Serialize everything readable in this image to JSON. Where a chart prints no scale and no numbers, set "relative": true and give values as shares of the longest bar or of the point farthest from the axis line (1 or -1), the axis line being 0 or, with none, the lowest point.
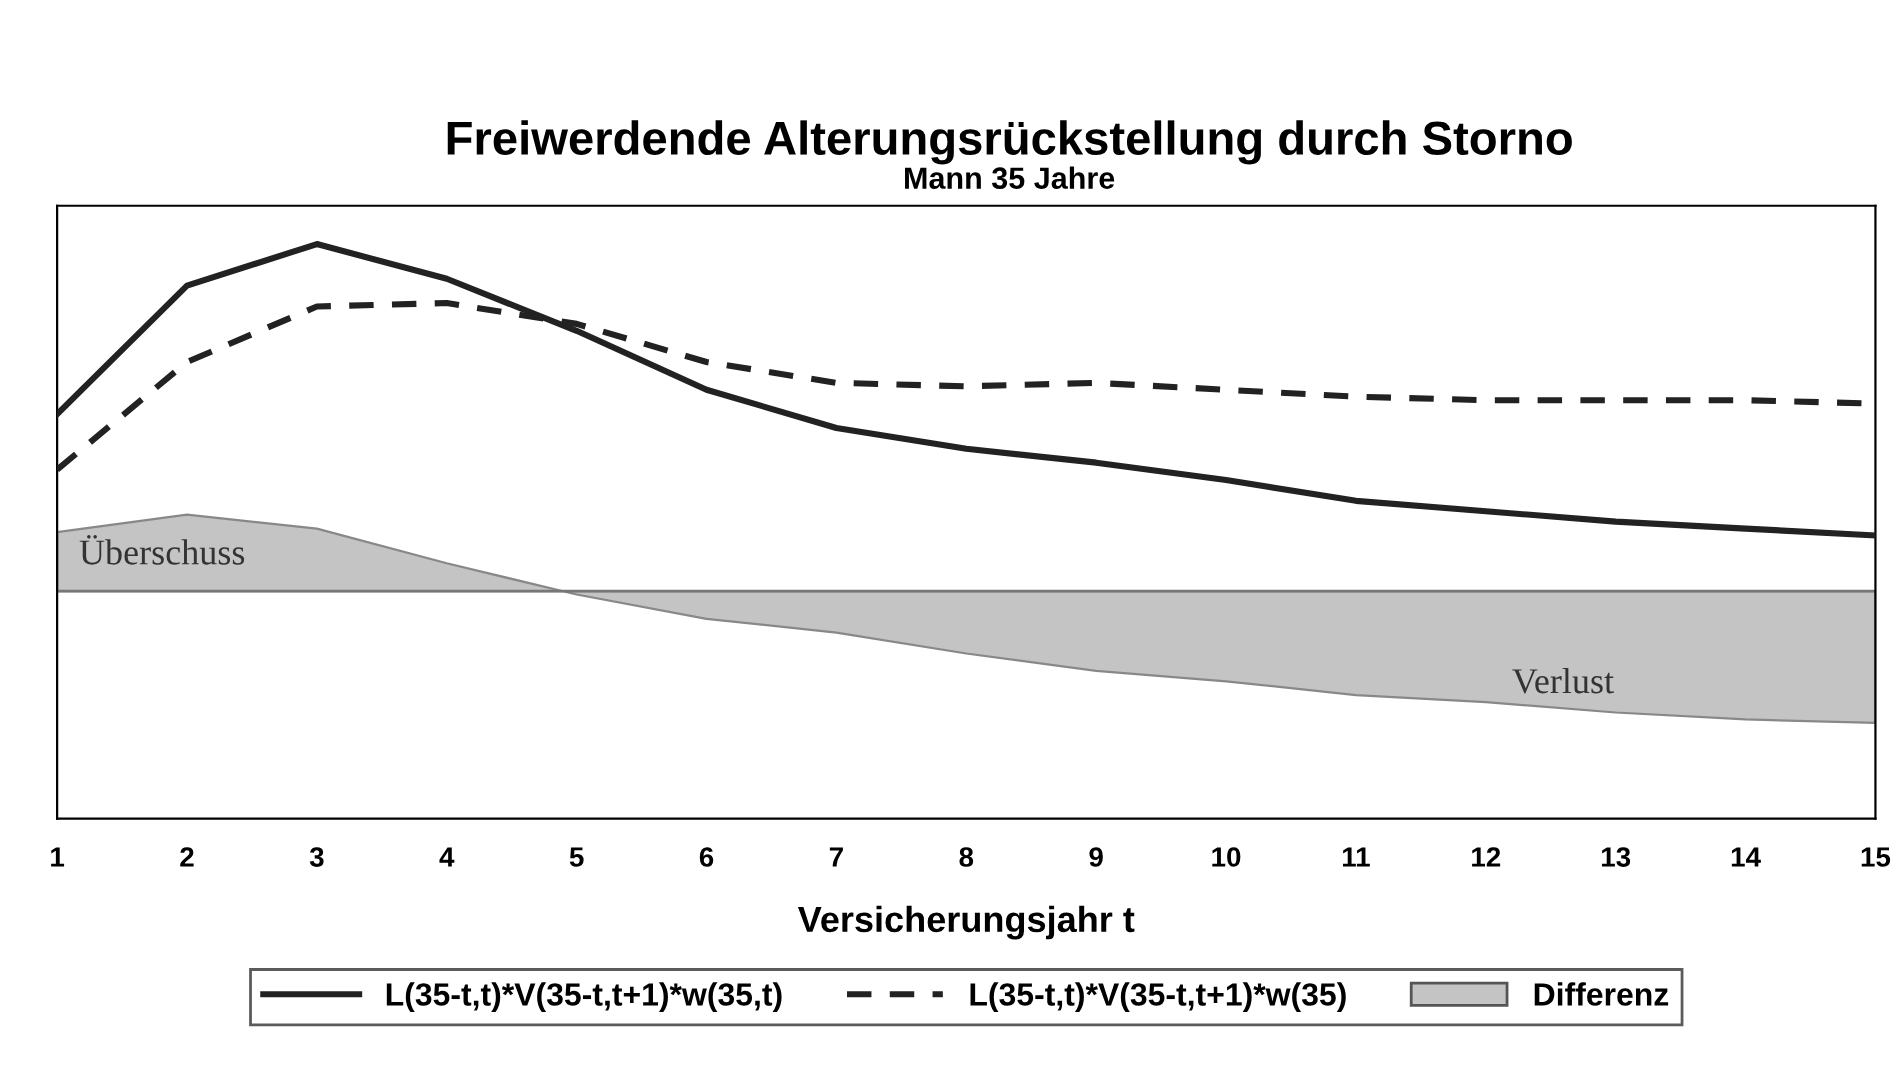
{
  "chart_data": {
    "type": "line",
    "title": "Freiwerdende Alterungsrückstellung durch Storno",
    "subtitle": "Mann 35 Jahre",
    "xlabel": "Versicherungsjahr t",
    "relative": true,
    "x": [
      1,
      2,
      3,
      4,
      5,
      6,
      7,
      8,
      9,
      10,
      11,
      12,
      13,
      14,
      15
    ],
    "xlim": [
      1,
      15
    ],
    "xticks": [
      1,
      2,
      3,
      4,
      5,
      6,
      7,
      8,
      9,
      10,
      11,
      12,
      13,
      14,
      15
    ],
    "series": [
      {
        "name": "L(35-t,t)*V(35-t,t+1)*w(35,t)",
        "color": "#222222",
        "line_style": "solid",
        "values": [
          0.51,
          0.88,
          1.0,
          0.9,
          0.75,
          0.58,
          0.47,
          0.41,
          0.37,
          0.32,
          0.26,
          0.23,
          0.2,
          0.18,
          0.16
        ]
      },
      {
        "name": "L(35-t,t)*V(35-t,t+1)*w(35)",
        "color": "#222222",
        "line_style": "dashed",
        "values": [
          0.35,
          0.66,
          0.82,
          0.83,
          0.77,
          0.66,
          0.6,
          0.59,
          0.6,
          0.58,
          0.56,
          0.55,
          0.55,
          0.55,
          0.54
        ]
      },
      {
        "name": "Differenz",
        "type": "area",
        "color": "#c4c4c4",
        "values": [
          0.17,
          0.22,
          0.18,
          0.08,
          -0.01,
          -0.08,
          -0.12,
          -0.18,
          -0.23,
          -0.26,
          -0.3,
          -0.32,
          -0.35,
          -0.37,
          -0.38
        ]
      }
    ],
    "annotations": [
      "Überschuss",
      "Verlust"
    ],
    "grid": false,
    "legend": "bottom",
    "marker": "none"
  }
}
